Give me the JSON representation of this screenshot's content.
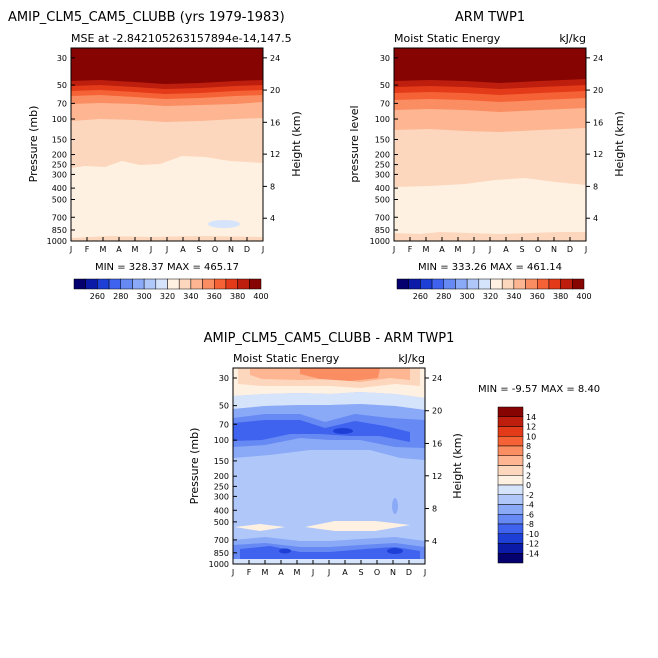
{
  "colors": {
    "palette": [
      "#04006e",
      "#0b1ba8",
      "#1d3fd6",
      "#3f63ef",
      "#6689f3",
      "#8aa9f7",
      "#b0c8f9",
      "#d5e3fb",
      "#fff1e1",
      "#fdd7bd",
      "#fdb592",
      "#fa8d61",
      "#f56235",
      "#e33a19",
      "#bd1e0d",
      "#860402"
    ]
  },
  "chart_data": [
    {
      "type": "heatmap",
      "title": "AMIP_CLM5_CAM5_CLUBB (yrs 1979-1983)",
      "subtitle": "MSE at -2.842105263157894e-14,147.5",
      "subtitle_right": "",
      "ylabel": "Pressure (mb)",
      "ylabel_right": "Height (km)",
      "x_ticks": [
        "J",
        "F",
        "M",
        "A",
        "M",
        "J",
        "J",
        "A",
        "S",
        "O",
        "N",
        "D",
        "J"
      ],
      "y_ticks": [
        "30",
        "50",
        "70",
        "100",
        "150",
        "200",
        "250",
        "300",
        "400",
        "500",
        "700",
        "850",
        "1000"
      ],
      "y_ticks_right": [
        "24",
        "20",
        "16",
        "12",
        "8",
        "4"
      ],
      "min_max": "MIN = 328.37  MAX = 465.17",
      "colorbar_labels": [
        "260",
        "280",
        "300",
        "320",
        "340",
        "360",
        "380",
        "400"
      ]
    },
    {
      "type": "heatmap",
      "title": "ARM TWP1",
      "subtitle": "Moist Static Energy",
      "subtitle_right": "kJ/kg",
      "ylabel": "pressure level",
      "ylabel_right": "Height (km)",
      "x_ticks": [
        "J",
        "F",
        "M",
        "A",
        "M",
        "J",
        "J",
        "A",
        "S",
        "O",
        "N",
        "D",
        "J"
      ],
      "y_ticks": [
        "30",
        "50",
        "70",
        "100",
        "150",
        "200",
        "250",
        "300",
        "400",
        "500",
        "700",
        "850",
        "1000"
      ],
      "y_ticks_right": [
        "24",
        "20",
        "16",
        "12",
        "8",
        "4"
      ],
      "min_max": "MIN = 333.26  MAX = 461.14",
      "colorbar_labels": [
        "260",
        "280",
        "300",
        "320",
        "340",
        "360",
        "380",
        "400"
      ]
    },
    {
      "type": "heatmap",
      "title": "AMIP_CLM5_CAM5_CLUBB - ARM TWP1",
      "subtitle": "Moist Static Energy",
      "subtitle_right": "kJ/kg",
      "ylabel": "Pressure (mb)",
      "ylabel_right": "Height (km)",
      "x_ticks": [
        "J",
        "F",
        "M",
        "A",
        "M",
        "J",
        "J",
        "A",
        "S",
        "O",
        "N",
        "D",
        "J"
      ],
      "y_ticks": [
        "30",
        "50",
        "70",
        "100",
        "150",
        "200",
        "250",
        "300",
        "400",
        "500",
        "700",
        "850",
        "1000"
      ],
      "y_ticks_right": [
        "24",
        "20",
        "16",
        "12",
        "8",
        "4"
      ],
      "min_max": "MIN =  -9.57 MAX =   8.40",
      "colorbar_labels": [
        "14",
        "12",
        "10",
        "8",
        "6",
        "4",
        "2",
        "0",
        "-2",
        "-4",
        "-6",
        "-8",
        "-10",
        "-12",
        "-14"
      ]
    }
  ]
}
